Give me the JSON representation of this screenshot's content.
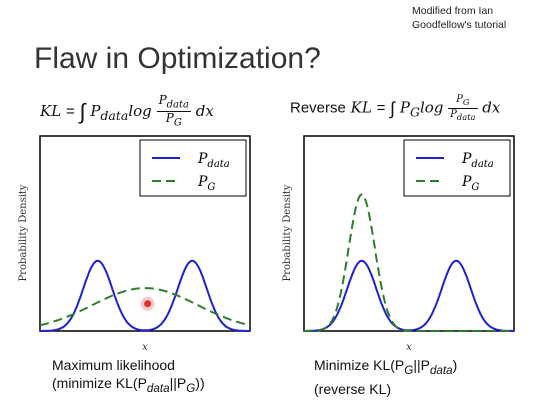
{
  "credit": "Modified from Ian\nGoodfellow's tutorial",
  "title": "Flaw in Optimization?",
  "formula_left": {
    "lhs": "KL",
    "integrand": "P",
    "sub": "data",
    "log": "log",
    "num": "P",
    "num_sub": "data",
    "den": "P",
    "den_sub": "G",
    "dx": "dx"
  },
  "formula_right": {
    "prefix": "Reverse",
    "lhs": "KL",
    "integrand": "P",
    "sub": "G",
    "log": "log",
    "num": "P",
    "num_sub": "G",
    "den": "P",
    "den_sub": "data",
    "dx": "dx"
  },
  "caption_left": {
    "line1": "Maximum likelihood",
    "line2": "(minimize KL(P",
    "line2_sub1": "data",
    "line2_mid": "||P",
    "line2_sub2": "G",
    "line2_end": "))"
  },
  "caption_right": {
    "line1": "Minimize KL(P",
    "line1_sub1": "G",
    "line1_mid": "||P",
    "line1_sub2": "data",
    "line1_end": ")",
    "line2": "(reverse KL)"
  },
  "chart_data": [
    {
      "type": "line",
      "xlabel": "x",
      "ylabel": "Probability Density",
      "xlim": [
        -4,
        4
      ],
      "ylim": [
        0,
        1.0
      ],
      "series": [
        {
          "name": "P_data",
          "legend_main": "P",
          "legend_sub": "data",
          "color": "#1f1fd4",
          "style": "solid",
          "components": [
            {
              "mu": -1.8,
              "sigma": 0.55,
              "amp": 0.36
            },
            {
              "mu": 1.8,
              "sigma": 0.55,
              "amp": 0.36
            }
          ]
        },
        {
          "name": "P_G",
          "legend_main": "P",
          "legend_sub": "G",
          "color": "#2e7d2e",
          "style": "dashed",
          "components": [
            {
              "mu": 0.0,
              "sigma": 2.0,
              "amp": 0.22
            }
          ]
        }
      ],
      "marker": {
        "x": 0.1,
        "y": 0.14,
        "color": "#e03030"
      }
    },
    {
      "type": "line",
      "xlabel": "x",
      "ylabel": "Probability Density",
      "xlim": [
        -4,
        4
      ],
      "ylim": [
        0,
        1.0
      ],
      "series": [
        {
          "name": "P_data",
          "legend_main": "P",
          "legend_sub": "data",
          "color": "#1f1fd4",
          "style": "solid",
          "components": [
            {
              "mu": -1.8,
              "sigma": 0.55,
              "amp": 0.36
            },
            {
              "mu": 1.8,
              "sigma": 0.55,
              "amp": 0.36
            }
          ]
        },
        {
          "name": "P_G",
          "legend_main": "P",
          "legend_sub": "G",
          "color": "#2e7d2e",
          "style": "dashed",
          "components": [
            {
              "mu": -1.8,
              "sigma": 0.5,
              "amp": 0.7
            }
          ]
        }
      ]
    }
  ]
}
